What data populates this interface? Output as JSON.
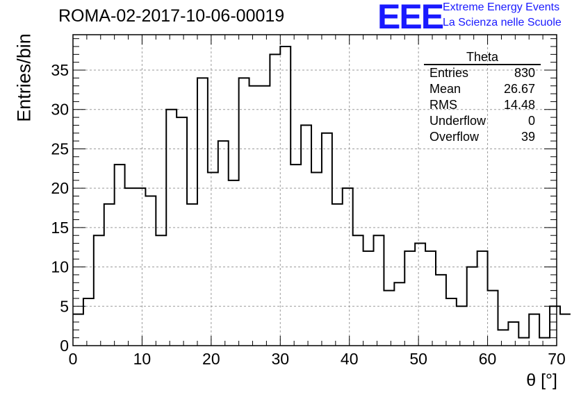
{
  "title": "ROMA-02-2017-10-06-00019",
  "logo": {
    "text": "EEE",
    "line1": "Extreme Energy Events",
    "line2": "La Scienza nelle Scuole",
    "color": "#1a1aff"
  },
  "stats": {
    "title": "Theta",
    "rows": [
      {
        "label": "Entries",
        "value": "830"
      },
      {
        "label": "Mean",
        "value": "26.67"
      },
      {
        "label": "RMS",
        "value": "14.48"
      },
      {
        "label": "Underflow",
        "value": "0"
      },
      {
        "label": "Overflow",
        "value": "39"
      }
    ]
  },
  "chart_data": {
    "type": "bar",
    "histogram": true,
    "title": "ROMA-02-2017-10-06-00019",
    "xlabel": "θ [°]",
    "ylabel": "Entries/bin",
    "xlim": [
      0,
      70
    ],
    "ylim": [
      0,
      39.5
    ],
    "x_ticks": [
      0,
      10,
      20,
      30,
      40,
      50,
      60,
      70
    ],
    "y_ticks": [
      0,
      5,
      10,
      15,
      20,
      25,
      30,
      35
    ],
    "grid": true,
    "bin_width": 1.5,
    "bin_start": 0,
    "values": [
      4,
      6,
      14,
      18,
      23,
      20,
      20,
      19,
      14,
      30,
      29,
      18,
      34,
      22,
      26,
      21,
      34,
      33,
      33,
      37,
      38,
      23,
      28,
      22,
      27,
      18,
      20,
      14,
      12,
      14,
      7,
      8,
      12,
      13,
      12,
      9,
      6,
      5,
      10,
      12,
      7,
      2,
      3,
      1,
      4,
      1,
      5,
      4
    ]
  }
}
